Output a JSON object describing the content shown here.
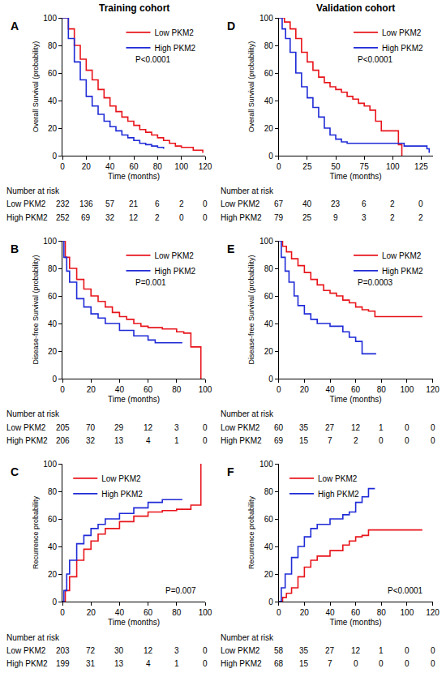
{
  "chart_data": [
    {
      "type": "line",
      "title": "Training cohort",
      "annotations": [
        "A",
        "P<0.0001"
      ],
      "x_label": "Time (months)",
      "y_label": "Overall Survival (probability)",
      "xlim": [
        0,
        120
      ],
      "xticks": [
        0,
        20,
        40,
        60,
        80,
        100,
        120
      ],
      "ylim": [
        0,
        100
      ],
      "yticks": [
        0,
        20,
        40,
        60,
        80,
        100
      ],
      "grid": false,
      "legend": "top right",
      "line_style": "step",
      "series": [
        {
          "name": "Low PKM2",
          "color": "#e8141b",
          "x": [
            0,
            5,
            10,
            15,
            20,
            25,
            30,
            35,
            40,
            45,
            50,
            55,
            60,
            65,
            70,
            75,
            80,
            85,
            90,
            95,
            100,
            110,
            118
          ],
          "values": [
            100,
            92,
            80,
            70,
            62,
            55,
            48,
            42,
            36,
            32,
            28,
            25,
            22,
            19,
            17,
            15,
            13,
            11,
            9,
            7,
            6,
            4,
            2
          ]
        },
        {
          "name": "High PKM2",
          "color": "#1f2bd6",
          "x": [
            0,
            5,
            10,
            15,
            20,
            25,
            30,
            35,
            40,
            45,
            50,
            55,
            60,
            65,
            70,
            75,
            80,
            85
          ],
          "values": [
            100,
            85,
            68,
            55,
            43,
            36,
            30,
            25,
            21,
            18,
            15,
            13,
            11,
            9,
            8,
            7,
            6,
            5
          ]
        }
      ],
      "risk_table": {
        "title": "Number at risk",
        "rows": [
          {
            "name": "Low PKM2",
            "values": [
              232,
              136,
              57,
              21,
              6,
              2,
              0
            ]
          },
          {
            "name": "High PKM2",
            "values": [
              252,
              69,
              32,
              12,
              2,
              0,
              0
            ]
          }
        ]
      }
    },
    {
      "type": "line",
      "annotations": [
        "B",
        "P=0.001"
      ],
      "x_label": "Time (months)",
      "y_label": "Disease-free Survival (probability)",
      "xlim": [
        0,
        100
      ],
      "xticks": [
        0,
        20,
        40,
        60,
        80,
        100
      ],
      "ylim": [
        0,
        100
      ],
      "yticks": [
        0,
        20,
        40,
        60,
        80,
        100
      ],
      "grid": false,
      "legend": "top right",
      "line_style": "step",
      "series": [
        {
          "name": "Low PKM2",
          "color": "#e8141b",
          "x": [
            0,
            2,
            5,
            10,
            15,
            20,
            25,
            30,
            35,
            40,
            45,
            50,
            55,
            60,
            70,
            80,
            85,
            90,
            96,
            97
          ],
          "values": [
            100,
            88,
            80,
            72,
            65,
            60,
            56,
            52,
            48,
            45,
            43,
            40,
            38,
            37,
            36,
            34,
            33,
            23,
            23,
            0
          ]
        },
        {
          "name": "High PKM2",
          "color": "#1f2bd6",
          "x": [
            0,
            1,
            3,
            5,
            10,
            15,
            20,
            25,
            30,
            40,
            50,
            60,
            65,
            84
          ],
          "values": [
            100,
            88,
            78,
            70,
            58,
            52,
            47,
            44,
            40,
            35,
            31,
            28,
            26,
            26
          ]
        }
      ],
      "risk_table": {
        "title": "Number at risk",
        "rows": [
          {
            "name": "Low PKM2",
            "values": [
              205,
              70,
              29,
              12,
              3,
              0
            ]
          },
          {
            "name": "High PKM2",
            "values": [
              206,
              32,
              13,
              4,
              1,
              0
            ]
          }
        ]
      }
    },
    {
      "type": "line",
      "annotations": [
        "C",
        "P=0.007"
      ],
      "x_label": "Time (months)",
      "y_label": "Recurrence probability",
      "xlim": [
        0,
        100
      ],
      "xticks": [
        0,
        20,
        40,
        60,
        80,
        100
      ],
      "ylim": [
        0,
        100
      ],
      "yticks": [
        0,
        20,
        40,
        60,
        80,
        100
      ],
      "grid": false,
      "legend": "top left",
      "line_style": "step",
      "series": [
        {
          "name": "Low PKM2",
          "color": "#e8141b",
          "x": [
            0,
            2,
            5,
            10,
            15,
            20,
            25,
            30,
            40,
            50,
            60,
            70,
            80,
            90,
            96,
            97
          ],
          "values": [
            0,
            8,
            18,
            30,
            38,
            44,
            49,
            53,
            58,
            62,
            65,
            66,
            67,
            70,
            70,
            100
          ]
        },
        {
          "name": "High PKM2",
          "color": "#1f2bd6",
          "x": [
            0,
            1,
            3,
            5,
            10,
            15,
            20,
            25,
            30,
            40,
            50,
            60,
            70,
            84
          ],
          "values": [
            0,
            8,
            20,
            30,
            42,
            48,
            53,
            56,
            60,
            64,
            68,
            72,
            74,
            74
          ]
        }
      ],
      "risk_table": {
        "title": "Number at risk",
        "rows": [
          {
            "name": "Low PKM2",
            "values": [
              203,
              72,
              30,
              12,
              3,
              0
            ]
          },
          {
            "name": "High PKM2",
            "values": [
              199,
              31,
              13,
              4,
              1,
              0
            ]
          }
        ]
      }
    },
    {
      "type": "line",
      "title": "Validation cohort",
      "annotations": [
        "D",
        "P<0.0001"
      ],
      "x_label": "Time (months)",
      "y_label": "Overall Survival (probability)",
      "xlim": [
        0,
        135
      ],
      "xticks": [
        0,
        25,
        50,
        75,
        100,
        125
      ],
      "ylim": [
        0,
        100
      ],
      "yticks": [
        0,
        20,
        40,
        60,
        80,
        100
      ],
      "grid": false,
      "legend": "top right",
      "line_style": "step",
      "series": [
        {
          "name": "Low PKM2",
          "color": "#e8141b",
          "x": [
            0,
            5,
            10,
            15,
            20,
            25,
            30,
            35,
            40,
            45,
            50,
            55,
            60,
            65,
            70,
            75,
            80,
            85,
            90,
            100,
            105,
            108
          ],
          "values": [
            100,
            97,
            92,
            85,
            75,
            68,
            62,
            57,
            53,
            50,
            48,
            46,
            43,
            41,
            38,
            36,
            33,
            25,
            18,
            18,
            8,
            0
          ]
        },
        {
          "name": "High PKM2",
          "color": "#1f2bd6",
          "x": [
            0,
            3,
            6,
            10,
            15,
            20,
            25,
            30,
            35,
            40,
            45,
            50,
            55,
            60,
            100,
            110,
            125,
            130,
            132
          ],
          "values": [
            100,
            92,
            85,
            75,
            60,
            50,
            42,
            35,
            28,
            20,
            15,
            12,
            10,
            9,
            9,
            7,
            7,
            5,
            2
          ]
        }
      ],
      "risk_table": {
        "title": "Number at risk",
        "rows": [
          {
            "name": "Low PKM2",
            "values": [
              67,
              40,
              23,
              6,
              2,
              0
            ]
          },
          {
            "name": "High PKM2",
            "values": [
              79,
              25,
              9,
              3,
              2,
              2
            ]
          }
        ]
      }
    },
    {
      "type": "line",
      "annotations": [
        "E",
        "P=0.0003"
      ],
      "x_label": "Time (months)",
      "y_label": "Disease-free Survival (probability)",
      "xlim": [
        0,
        120
      ],
      "xticks": [
        0,
        20,
        40,
        60,
        80,
        100,
        120
      ],
      "ylim": [
        0,
        100
      ],
      "yticks": [
        0,
        20,
        40,
        60,
        80,
        100
      ],
      "grid": false,
      "legend": "top right",
      "line_style": "step",
      "series": [
        {
          "name": "Low PKM2",
          "color": "#e8141b",
          "x": [
            0,
            3,
            6,
            10,
            15,
            20,
            25,
            30,
            35,
            40,
            45,
            50,
            55,
            60,
            65,
            70,
            75,
            112
          ],
          "values": [
            100,
            96,
            92,
            87,
            82,
            77,
            72,
            68,
            64,
            62,
            60,
            57,
            55,
            52,
            50,
            49,
            45,
            45
          ]
        },
        {
          "name": "High PKM2",
          "color": "#1f2bd6",
          "x": [
            0,
            2,
            5,
            8,
            12,
            15,
            20,
            25,
            30,
            40,
            50,
            55,
            60,
            65,
            76
          ],
          "values": [
            100,
            88,
            78,
            70,
            60,
            53,
            47,
            43,
            40,
            38,
            34,
            30,
            27,
            18,
            18
          ]
        }
      ],
      "risk_table": {
        "title": "Number at risk",
        "rows": [
          {
            "name": "Low PKM2",
            "values": [
              60,
              35,
              27,
              12,
              1,
              0,
              0
            ]
          },
          {
            "name": "High PKM2",
            "values": [
              69,
              15,
              7,
              2,
              0,
              0,
              0
            ]
          }
        ]
      }
    },
    {
      "type": "line",
      "annotations": [
        "F",
        "P<0.0001"
      ],
      "x_label": "Time (months)",
      "y_label": "Recurrence probability",
      "xlim": [
        0,
        120
      ],
      "xticks": [
        0,
        20,
        40,
        60,
        80,
        100,
        120
      ],
      "ylim": [
        0,
        100
      ],
      "yticks": [
        0,
        20,
        40,
        60,
        80,
        100
      ],
      "grid": false,
      "legend": "top left",
      "line_style": "step",
      "series": [
        {
          "name": "Low PKM2",
          "color": "#e8141b",
          "x": [
            0,
            3,
            6,
            10,
            15,
            20,
            25,
            30,
            40,
            50,
            55,
            60,
            65,
            70,
            112
          ],
          "values": [
            0,
            3,
            6,
            10,
            18,
            25,
            30,
            33,
            37,
            41,
            44,
            47,
            48,
            52,
            52
          ]
        },
        {
          "name": "High PKM2",
          "color": "#1f2bd6",
          "x": [
            0,
            2,
            5,
            10,
            15,
            20,
            25,
            30,
            40,
            50,
            55,
            60,
            65,
            70,
            75
          ],
          "values": [
            0,
            10,
            20,
            32,
            40,
            47,
            53,
            56,
            60,
            63,
            65,
            72,
            76,
            82,
            82
          ]
        }
      ],
      "risk_table": {
        "title": "Number at risk",
        "rows": [
          {
            "name": "Low PKM2",
            "values": [
              58,
              35,
              27,
              12,
              1,
              0,
              0
            ]
          },
          {
            "name": "High PKM2",
            "values": [
              68,
              15,
              7,
              0,
              0,
              0,
              0
            ]
          }
        ]
      }
    }
  ]
}
